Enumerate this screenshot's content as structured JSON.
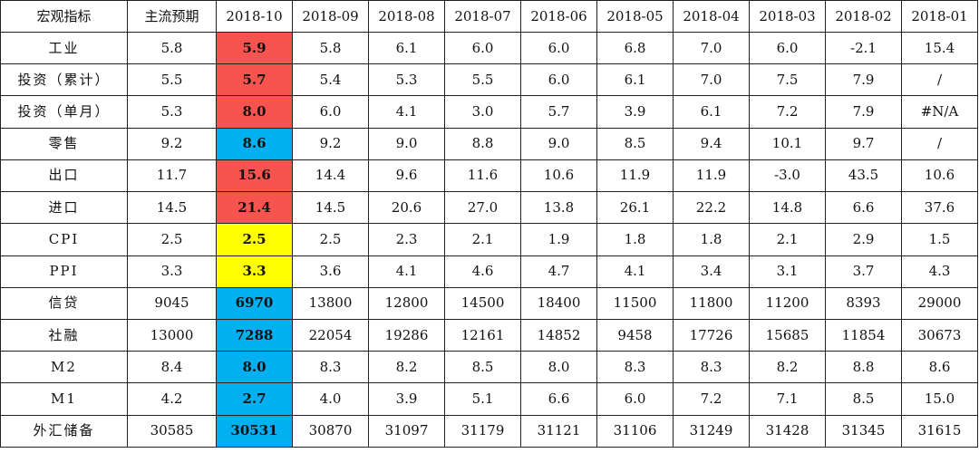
{
  "colors": {
    "red": "#f75450",
    "blue": "#00b0f0",
    "yellow": "#ffff00",
    "border": "#222222"
  },
  "headers": [
    "宏观指标",
    "主流预期",
    "2018-10",
    "2018-09",
    "2018-08",
    "2018-07",
    "2018-06",
    "2018-05",
    "2018-04",
    "2018-03",
    "2018-02",
    "2018-01"
  ],
  "rows": [
    {
      "indicator": "工业",
      "consensus": "5.8",
      "highlight": {
        "value": "5.9",
        "color": "red"
      },
      "months": [
        "5.8",
        "6.1",
        "6.0",
        "6.0",
        "6.8",
        "7.0",
        "6.0",
        "-2.1",
        "15.4"
      ]
    },
    {
      "indicator": "投资（累计）",
      "consensus": "5.5",
      "highlight": {
        "value": "5.7",
        "color": "red"
      },
      "months": [
        "5.4",
        "5.3",
        "5.5",
        "6.0",
        "6.1",
        "7.0",
        "7.5",
        "7.9",
        "/"
      ]
    },
    {
      "indicator": "投资（单月）",
      "consensus": "5.3",
      "highlight": {
        "value": "8.0",
        "color": "red"
      },
      "months": [
        "6.0",
        "4.1",
        "3.0",
        "5.7",
        "3.9",
        "6.1",
        "7.2",
        "7.9",
        "#N/A"
      ]
    },
    {
      "indicator": "零售",
      "consensus": "9.2",
      "highlight": {
        "value": "8.6",
        "color": "blue"
      },
      "months": [
        "9.2",
        "9.0",
        "8.8",
        "9.0",
        "8.5",
        "9.4",
        "10.1",
        "9.7",
        "/"
      ]
    },
    {
      "indicator": "出口",
      "consensus": "11.7",
      "highlight": {
        "value": "15.6",
        "color": "red"
      },
      "months": [
        "14.4",
        "9.6",
        "11.6",
        "10.6",
        "11.9",
        "11.9",
        "-3.0",
        "43.5",
        "10.6"
      ]
    },
    {
      "indicator": "进口",
      "consensus": "14.5",
      "highlight": {
        "value": "21.4",
        "color": "red"
      },
      "months": [
        "14.5",
        "20.6",
        "27.0",
        "13.8",
        "26.1",
        "22.2",
        "14.8",
        "6.6",
        "37.6"
      ]
    },
    {
      "indicator": "CPI",
      "consensus": "2.5",
      "highlight": {
        "value": "2.5",
        "color": "yellow"
      },
      "months": [
        "2.5",
        "2.3",
        "2.1",
        "1.9",
        "1.8",
        "1.8",
        "2.1",
        "2.9",
        "1.5"
      ]
    },
    {
      "indicator": "PPI",
      "consensus": "3.3",
      "highlight": {
        "value": "3.3",
        "color": "yellow"
      },
      "months": [
        "3.6",
        "4.1",
        "4.6",
        "4.7",
        "4.1",
        "3.4",
        "3.1",
        "3.7",
        "4.3"
      ]
    },
    {
      "indicator": "信贷",
      "consensus": "9045",
      "highlight": {
        "value": "6970",
        "color": "blue"
      },
      "months": [
        "13800",
        "12800",
        "14500",
        "18400",
        "11500",
        "11800",
        "11200",
        "8393",
        "29000"
      ]
    },
    {
      "indicator": "社融",
      "consensus": "13000",
      "highlight": {
        "value": "7288",
        "color": "blue"
      },
      "months": [
        "22054",
        "19286",
        "12161",
        "14852",
        "9458",
        "17726",
        "15685",
        "11854",
        "30673"
      ]
    },
    {
      "indicator": "M2",
      "consensus": "8.4",
      "highlight": {
        "value": "8.0",
        "color": "blue"
      },
      "months": [
        "8.3",
        "8.2",
        "8.5",
        "8.0",
        "8.3",
        "8.3",
        "8.2",
        "8.8",
        "8.6"
      ]
    },
    {
      "indicator": "M1",
      "consensus": "4.2",
      "highlight": {
        "value": "2.7",
        "color": "blue"
      },
      "months": [
        "4.0",
        "3.9",
        "5.1",
        "6.6",
        "6.0",
        "7.2",
        "7.1",
        "8.5",
        "15.0"
      ]
    },
    {
      "indicator": "外汇储备",
      "consensus": "30585",
      "highlight": {
        "value": "30531",
        "color": "blue"
      },
      "months": [
        "30870",
        "31097",
        "31179",
        "31121",
        "31106",
        "31249",
        "31428",
        "31345",
        "31615"
      ]
    }
  ]
}
